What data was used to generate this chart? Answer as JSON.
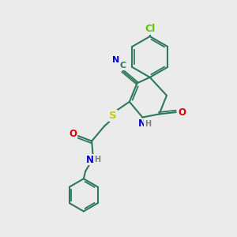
{
  "bg_color": "#ebebeb",
  "bond_color": "#2d7a5a",
  "bond_width": 1.5,
  "atom_colors": {
    "C": "#2d7a5a",
    "N": "#0000dd",
    "O": "#dd0000",
    "S": "#cccc00",
    "Cl": "#55cc00",
    "H": "#808080"
  },
  "font_size": 8.5
}
